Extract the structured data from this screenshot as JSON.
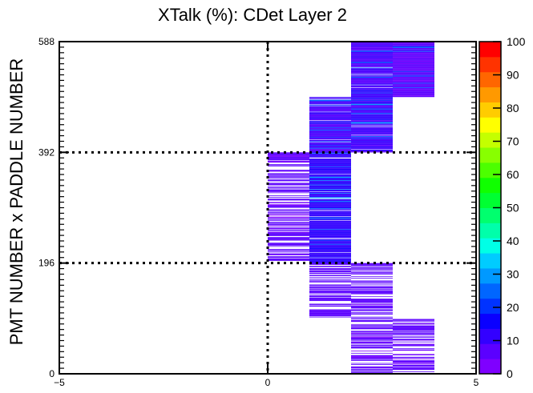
{
  "chart_data": {
    "type": "heatmap",
    "title": "XTalk (%): CDet Layer 2",
    "xlabel": "",
    "ylabel": "PMT NUMBER x PADDLE NUMBER",
    "xlim": [
      -5,
      5
    ],
    "ylim": [
      0,
      588
    ],
    "x_ticks": [
      "−5",
      "0",
      "5"
    ],
    "y_ticks": [
      "0",
      "196",
      "392",
      "588"
    ],
    "colorbar": {
      "min": 0,
      "max": 100,
      "ticks": [
        "0",
        "10",
        "20",
        "30",
        "40",
        "50",
        "60",
        "70",
        "80",
        "90",
        "100"
      ],
      "palette": [
        "#7F00FF",
        "#5B00FF",
        "#3300FF",
        "#0A00FF",
        "#0033FF",
        "#0066FF",
        "#0099FF",
        "#00CCFF",
        "#00FFE6",
        "#00FFAA",
        "#00FF6E",
        "#00FF32",
        "#10FF00",
        "#4CFF00",
        "#88FF00",
        "#C4FF00",
        "#FFFF00",
        "#FFCC00",
        "#FF9900",
        "#FF6600",
        "#FF3300",
        "#FF0000"
      ]
    },
    "reference_lines": {
      "vertical_x": [
        0
      ],
      "horizontal_y": [
        196,
        392
      ]
    },
    "bin_width": 1,
    "blocks": [
      {
        "x": [
          2,
          3
        ],
        "y": [
          0,
          196
        ],
        "row_pattern": "sparse",
        "value": 6
      },
      {
        "x": [
          3,
          4
        ],
        "y": [
          0,
          97
        ],
        "row_pattern": "sparse",
        "value": 6
      },
      {
        "x": [
          1,
          2
        ],
        "y": [
          99,
          196
        ],
        "row_pattern": "sparse",
        "value": 7
      },
      {
        "x": [
          0,
          1
        ],
        "y": [
          200,
          392
        ],
        "row_pattern": "sparse",
        "value": 6
      },
      {
        "x": [
          1,
          2
        ],
        "y": [
          196,
          392
        ],
        "row_pattern": "dense",
        "value": 12
      },
      {
        "x": [
          1,
          2
        ],
        "y": [
          392,
          490
        ],
        "row_pattern": "dense",
        "value": 9
      },
      {
        "x": [
          2,
          3
        ],
        "y": [
          392,
          588
        ],
        "row_pattern": "dense",
        "value": 9
      },
      {
        "x": [
          3,
          4
        ],
        "y": [
          490,
          588
        ],
        "row_pattern": "dense",
        "value": 6
      }
    ]
  }
}
